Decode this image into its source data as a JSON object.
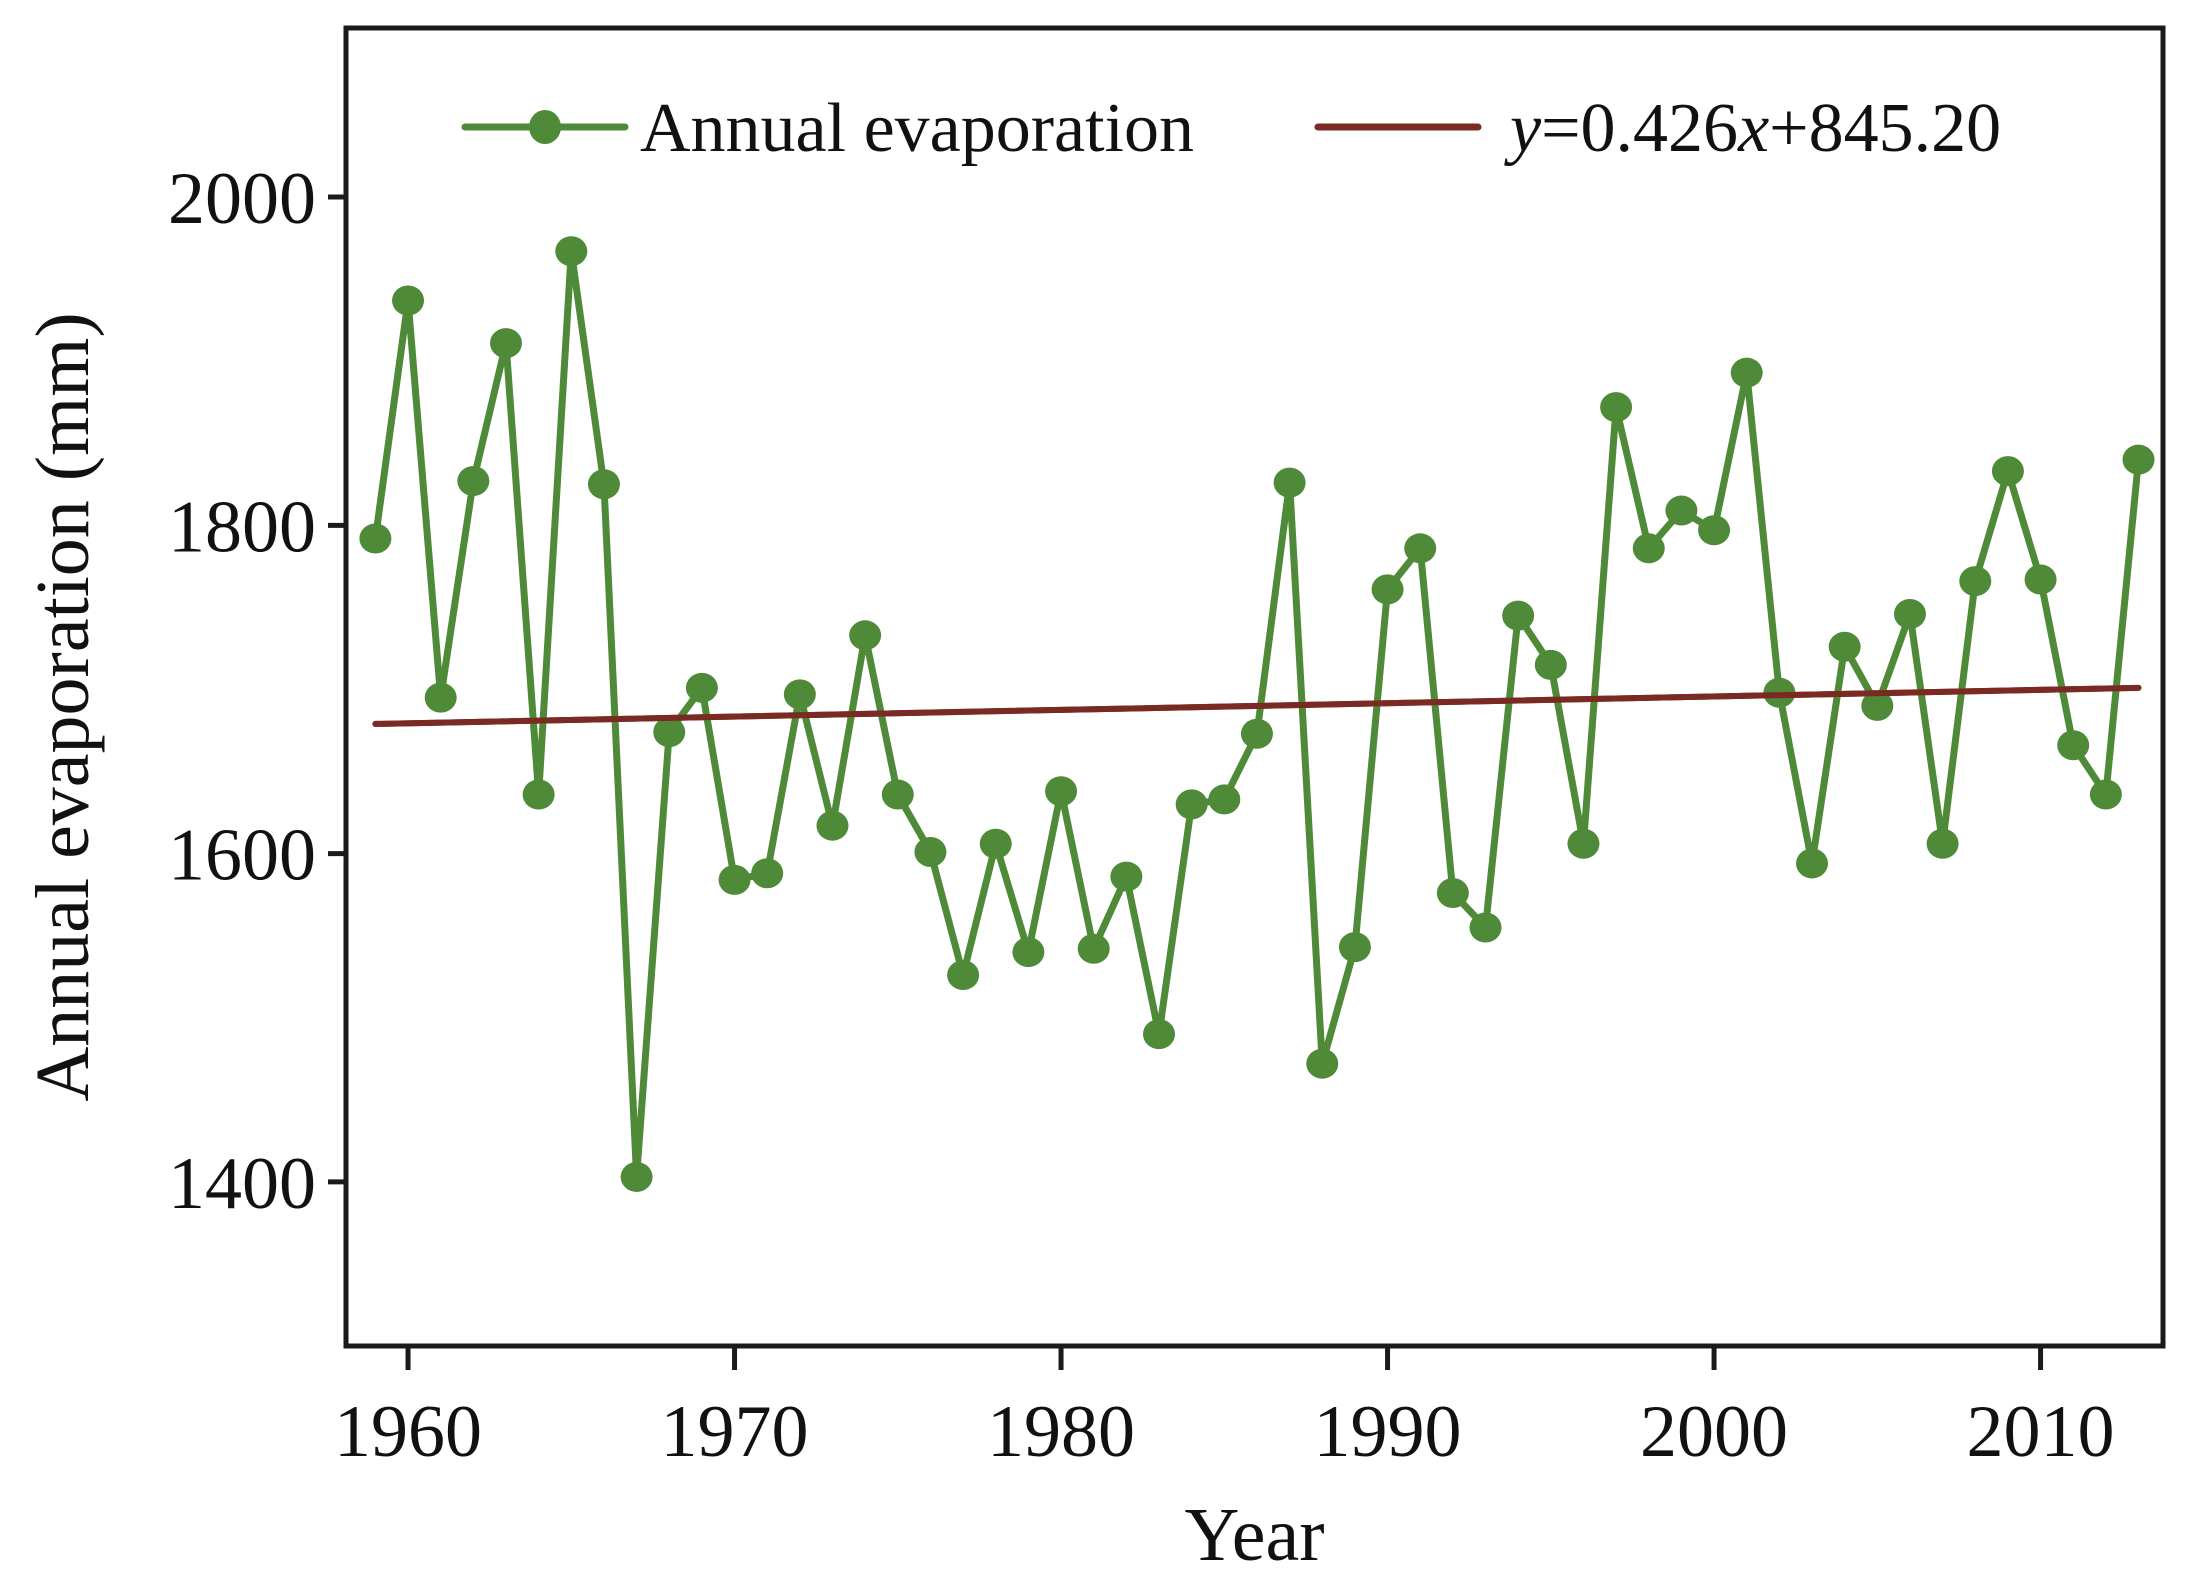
{
  "chart_data": {
    "type": "line",
    "title": "",
    "xlabel": "Year",
    "ylabel": "Annual evaporation (mm)",
    "xlim": [
      1958.1,
      2013.75
    ],
    "ylim": [
      1300,
      2103
    ],
    "xticks": [
      1960,
      1970,
      1980,
      1990,
      2000,
      2010
    ],
    "yticks": [
      1400,
      1600,
      1800,
      2000
    ],
    "grid": false,
    "legend_position": "top",
    "series": [
      {
        "name": "Annual evaporation",
        "color": "#4e8a38",
        "marker": "circle",
        "x": [
          1959,
          1960,
          1961,
          1962,
          1963,
          1964,
          1965,
          1966,
          1967,
          1968,
          1969,
          1970,
          1971,
          1972,
          1973,
          1974,
          1975,
          1976,
          1977,
          1978,
          1979,
          1980,
          1981,
          1982,
          1983,
          1984,
          1985,
          1986,
          1987,
          1988,
          1989,
          1990,
          1991,
          1992,
          1993,
          1994,
          1995,
          1996,
          1997,
          1998,
          1999,
          2000,
          2001,
          2002,
          2003,
          2004,
          2005,
          2006,
          2007,
          2008,
          2009,
          2010,
          2011,
          2012,
          2013
        ],
        "values": [
          1792,
          1937,
          1695,
          1827,
          1911,
          1636,
          1967,
          1825,
          1403,
          1674,
          1701,
          1584,
          1588,
          1697,
          1617,
          1733,
          1636,
          1601,
          1526,
          1606,
          1540,
          1638,
          1542,
          1586,
          1490,
          1630,
          1633,
          1673,
          1826,
          1472,
          1543,
          1761,
          1786,
          1576,
          1555,
          1745,
          1715,
          1606,
          1872,
          1786,
          1809,
          1797,
          1893,
          1698,
          1594,
          1726,
          1690,
          1746,
          1606,
          1766,
          1833,
          1767,
          1666,
          1636,
          1840
        ]
      },
      {
        "name": "y=0.426x+845.20",
        "color": "#7a2a22",
        "marker": "none",
        "x": [
          1959,
          2013
        ],
        "values": [
          1679,
          1701
        ]
      }
    ],
    "legend": [
      {
        "label": "Annual evaporation",
        "type": "line-marker"
      },
      {
        "label_parts": [
          {
            "text": "y",
            "italic": true
          },
          {
            "text": "=0.426",
            "italic": false
          },
          {
            "text": "x",
            "italic": true
          },
          {
            "text": "+845.20",
            "italic": false
          }
        ],
        "type": "line"
      }
    ]
  }
}
